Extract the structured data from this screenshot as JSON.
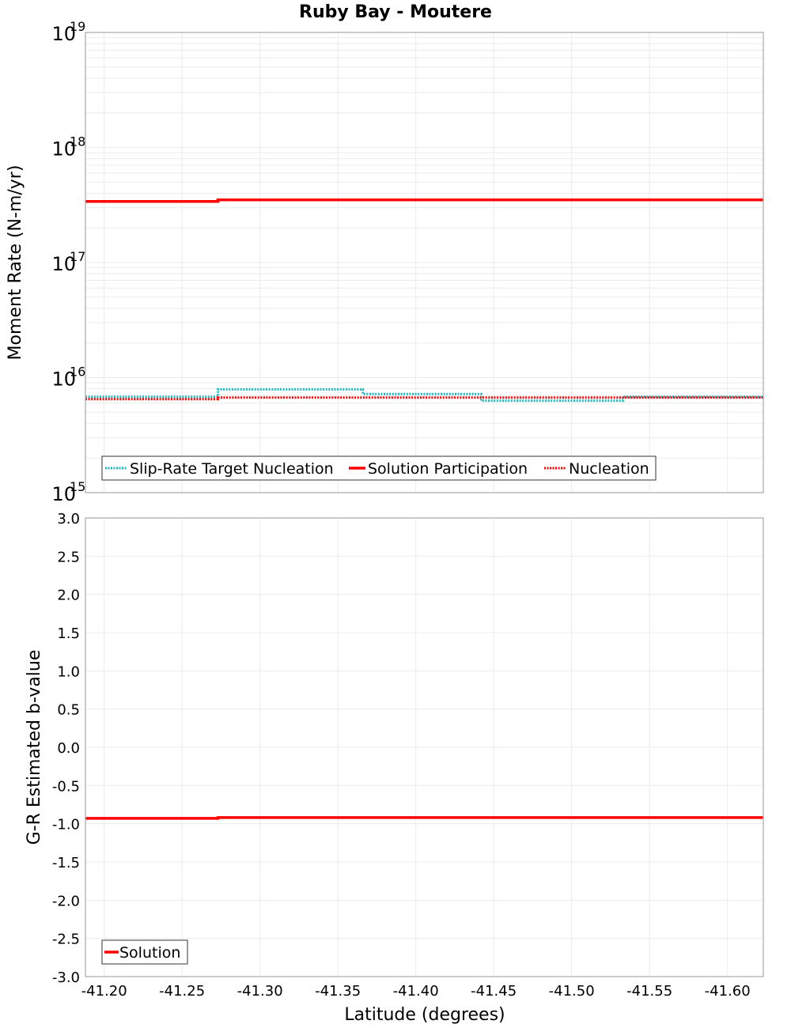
{
  "title": "Ruby Bay - Moutere",
  "colors": {
    "target": "#1fb8c0",
    "solution": "#ff0000",
    "nucleation": "#ff0000",
    "grid": "#ebebeb",
    "frame": "#a8a8a8"
  },
  "chart_data": [
    {
      "type": "line",
      "title": "Ruby Bay - Moutere",
      "xlabel": "Latitude (degrees)",
      "ylabel": "Moment Rate (N-m/yr)",
      "yscale": "log",
      "ylim": [
        1000000000000000.0,
        1e+19
      ],
      "xlim": [
        -41.188,
        -41.623
      ],
      "y_tick_labels": [
        {
          "base": "10",
          "exp": "19",
          "value": 1e+19
        },
        {
          "base": "10",
          "exp": "18",
          "value": 1e+18
        },
        {
          "base": "10",
          "exp": "17",
          "value": 1e+17
        },
        {
          "base": "10",
          "exp": "16",
          "value": 1e+16
        },
        {
          "base": "10",
          "exp": "15",
          "value": 1000000000000000.0
        }
      ],
      "grid": true,
      "legend_position": "lower-left inside",
      "series": [
        {
          "name": "Slip-Rate Target Nucleation",
          "style": "dotted",
          "color": "#1fb8c0",
          "steps": [
            {
              "x0": -41.188,
              "x1": -41.273,
              "y": 6800000000000000.0
            },
            {
              "x0": -41.273,
              "x1": -41.366,
              "y": 7900000000000000.0
            },
            {
              "x0": -41.366,
              "x1": -41.442,
              "y": 7200000000000000.0
            },
            {
              "x0": -41.442,
              "x1": -41.533,
              "y": 6300000000000000.0
            },
            {
              "x0": -41.533,
              "x1": -41.623,
              "y": 6800000000000000.0
            }
          ]
        },
        {
          "name": "Solution Participation",
          "style": "solid",
          "color": "#ff0000",
          "steps": [
            {
              "x0": -41.188,
              "x1": -41.273,
              "y": 3.4e+17
            },
            {
              "x0": -41.273,
              "x1": -41.623,
              "y": 3.5e+17
            }
          ]
        },
        {
          "name": "Nucleation",
          "style": "dotted",
          "color": "#ff0000",
          "steps": [
            {
              "x0": -41.188,
              "x1": -41.273,
              "y": 6500000000000000.0
            },
            {
              "x0": -41.273,
              "x1": -41.623,
              "y": 6700000000000000.0
            }
          ]
        }
      ]
    },
    {
      "type": "line",
      "title": "",
      "xlabel": "Latitude (degrees)",
      "ylabel": "G-R Estimated b-value",
      "yscale": "linear",
      "ylim": [
        -3.0,
        3.0
      ],
      "xlim": [
        -41.188,
        -41.623
      ],
      "y_tick_labels": [
        "3.0",
        "2.5",
        "2.0",
        "1.5",
        "1.0",
        "0.5",
        "0.0",
        "-0.5",
        "-1.0",
        "-1.5",
        "-2.0",
        "-2.5",
        "-3.0"
      ],
      "x_tick_labels": [
        "-41.20",
        "-41.25",
        "-41.30",
        "-41.35",
        "-41.40",
        "-41.45",
        "-41.50",
        "-41.55",
        "-41.60"
      ],
      "grid": true,
      "legend_position": "lower-left inside",
      "series": [
        {
          "name": "Solution",
          "style": "solid",
          "color": "#ff0000",
          "steps": [
            {
              "x0": -41.188,
              "x1": -41.273,
              "y": -0.93
            },
            {
              "x0": -41.273,
              "x1": -41.623,
              "y": -0.92
            }
          ]
        }
      ]
    }
  ],
  "top": {
    "ylabel": "Moment Rate (N-m/yr)",
    "legend": [
      {
        "label": "Slip-Rate Target Nucleation"
      },
      {
        "label": "Solution Participation"
      },
      {
        "label": "Nucleation"
      }
    ]
  },
  "bottom": {
    "ylabel": "G-R Estimated b-value",
    "legend": [
      {
        "label": "Solution"
      }
    ]
  },
  "xaxis": {
    "label": "Latitude (degrees)",
    "ticks": [
      "-41.20",
      "-41.25",
      "-41.30",
      "-41.35",
      "-41.40",
      "-41.45",
      "-41.50",
      "-41.55",
      "-41.60"
    ]
  }
}
